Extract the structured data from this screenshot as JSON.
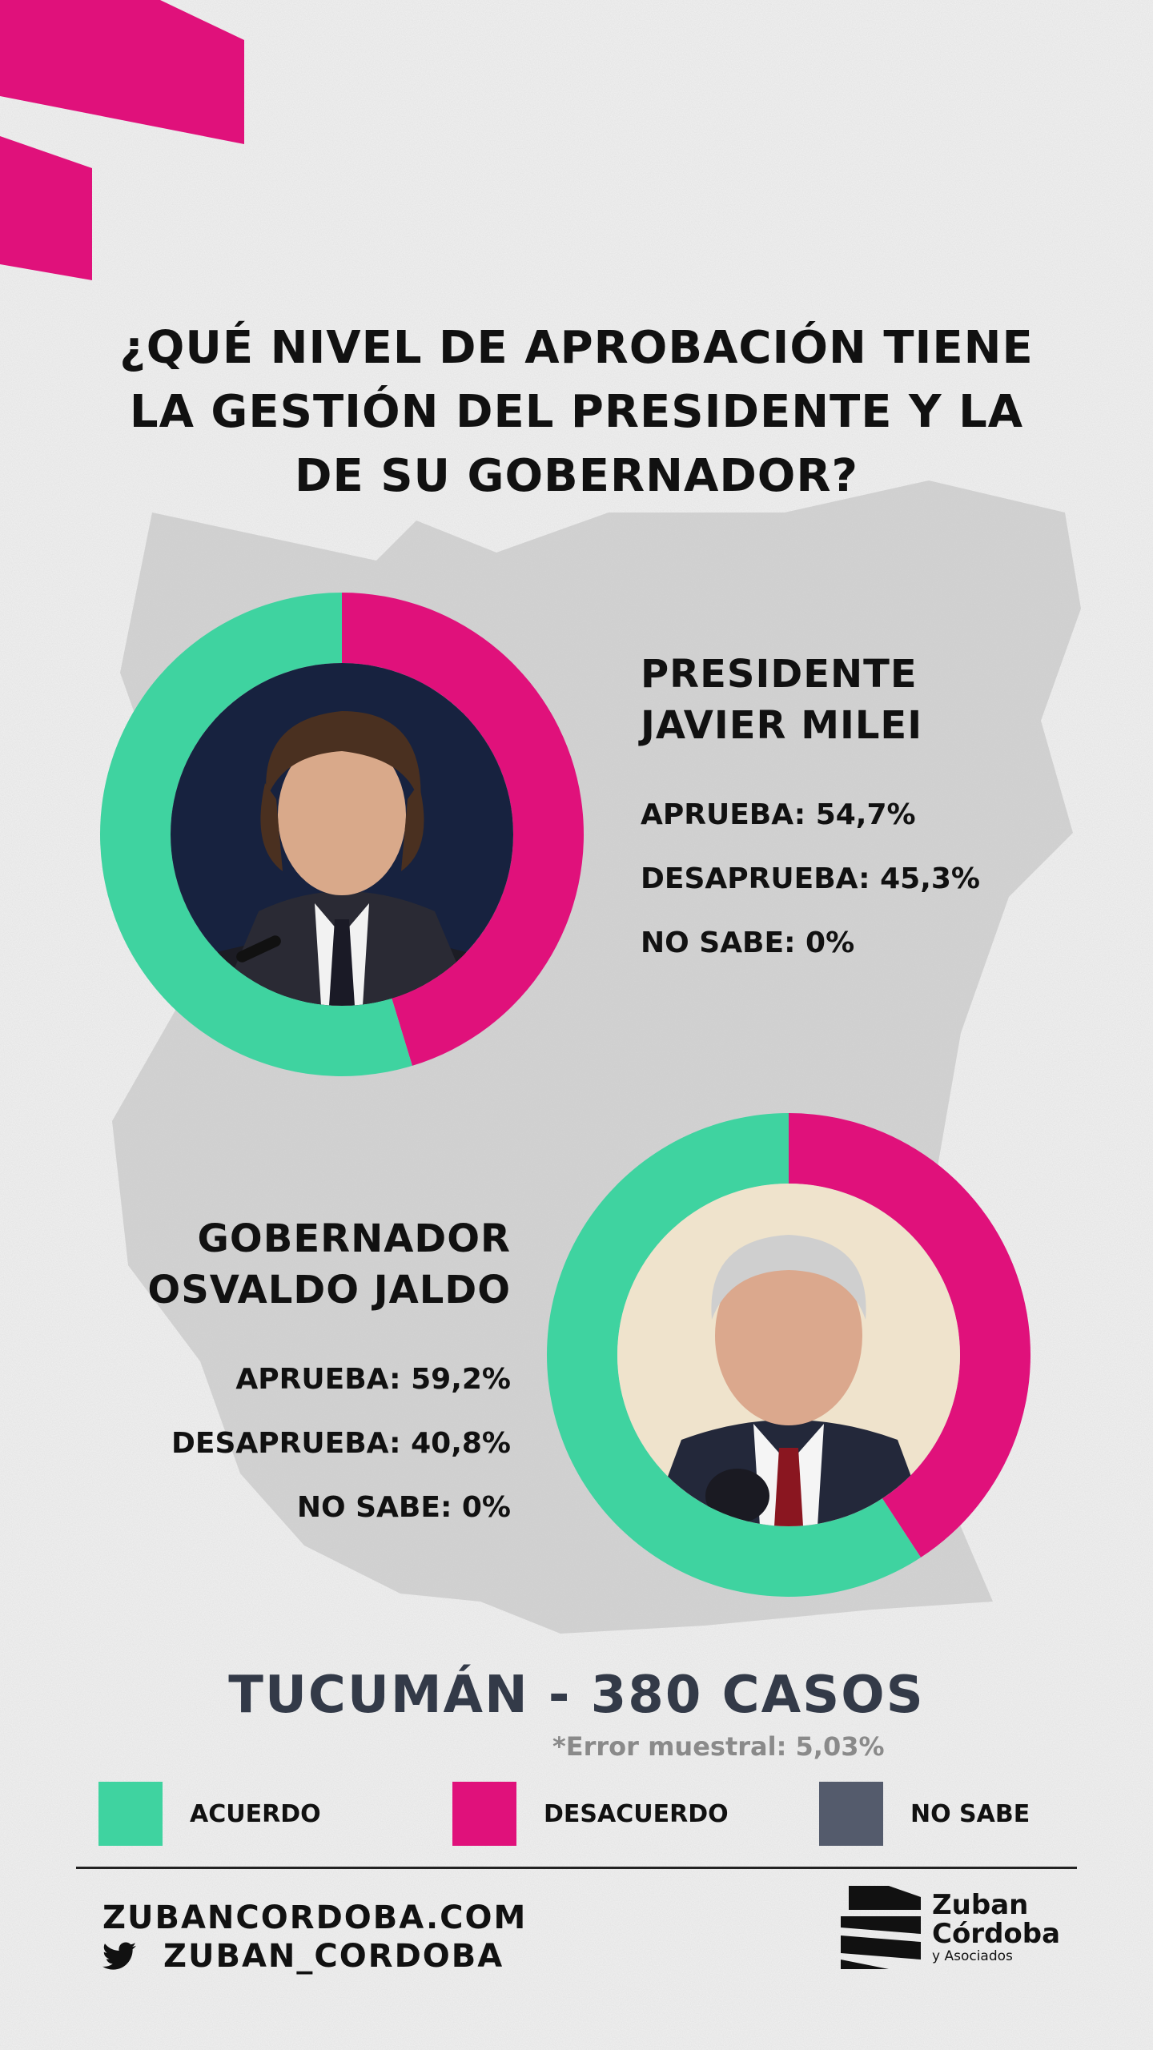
{
  "title": {
    "line1": "¿QUÉ NIVEL DE APROBACIÓN TIENE",
    "line2": "LA GESTIÓN DEL PRESIDENTE Y LA",
    "line3": "DE SU GOBERNADOR?"
  },
  "colors": {
    "acuerdo": "#3fd3a0",
    "desacuerdo": "#e0117b",
    "no_sabe": "#545b6c",
    "brand_accent": "#e0117b"
  },
  "chart_data": [
    {
      "type": "pie",
      "labels": [
        "APRUEBA",
        "DESAPRUEBA",
        "NO SABE"
      ],
      "values": [
        54.7,
        45.3,
        0
      ],
      "title": "PRESIDENTE JAVIER MILEI"
    },
    {
      "type": "pie",
      "labels": [
        "APRUEBA",
        "DESAPRUEBA",
        "NO SABE"
      ],
      "values": [
        59.2,
        40.8,
        0
      ],
      "title": "GOBERNADOR OSVALDO JALDO"
    }
  ],
  "president": {
    "name_line1": "PRESIDENTE",
    "name_line2": "JAVIER MILEI",
    "aprueba": "APRUEBA: 54,7%",
    "desaprueba": "DESAPRUEBA: 45,3%",
    "no_sabe": "NO SABE: 0%"
  },
  "governor": {
    "name_line1": "GOBERNADOR",
    "name_line2": "OSVALDO JALDO",
    "aprueba": "APRUEBA: 59,2%",
    "desaprueba": "DESAPRUEBA: 40,8%",
    "no_sabe": "NO SABE: 0%"
  },
  "footer": {
    "sample": "TUCUMÁN - 380 CASOS",
    "error": "*Error muestral: 5,03%"
  },
  "legend": [
    {
      "label": "ACUERDO",
      "color": "#3fd3a0"
    },
    {
      "label": "DESACUERDO",
      "color": "#e0117b"
    },
    {
      "label": "NO SABE",
      "color": "#545b6c"
    }
  ],
  "contact": {
    "website": "ZUBANCORDOBA.COM",
    "twitter": "ZUBAN_CORDOBA",
    "twitter_icon": "twitter-bird-icon"
  },
  "logo": {
    "line1": "Zuban",
    "line2": "Córdoba",
    "line3": "y Asociados"
  }
}
